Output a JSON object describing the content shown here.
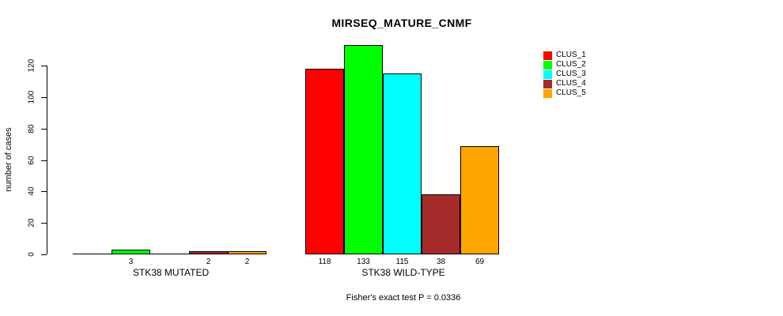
{
  "chart_data": {
    "type": "bar",
    "title": "MIRSEQ_MATURE_CNMF",
    "ylabel": "number of cases",
    "note": "Fisher's exact test P = 0.0336",
    "groups": [
      "STK38 MUTATED",
      "STK38 WILD-TYPE"
    ],
    "series": [
      {
        "name": "CLUS_1",
        "color": "#ff0000",
        "values": [
          0,
          118
        ]
      },
      {
        "name": "CLUS_2",
        "color": "#00ff00",
        "values": [
          3,
          133
        ]
      },
      {
        "name": "CLUS_3",
        "color": "#00ffff",
        "values": [
          0,
          115
        ]
      },
      {
        "name": "CLUS_4",
        "color": "#a52a2a",
        "values": [
          2,
          38
        ]
      },
      {
        "name": "CLUS_5",
        "color": "#ffa500",
        "values": [
          2,
          69
        ]
      }
    ],
    "bar_value_labels": [
      [
        "",
        "3",
        "",
        "2",
        "2"
      ],
      [
        "118",
        "133",
        "115",
        "38",
        "69"
      ]
    ],
    "yticks": [
      0,
      20,
      40,
      60,
      80,
      100,
      120
    ],
    "ylim": [
      0,
      133
    ],
    "grid": false,
    "legend_position": "top-right"
  }
}
